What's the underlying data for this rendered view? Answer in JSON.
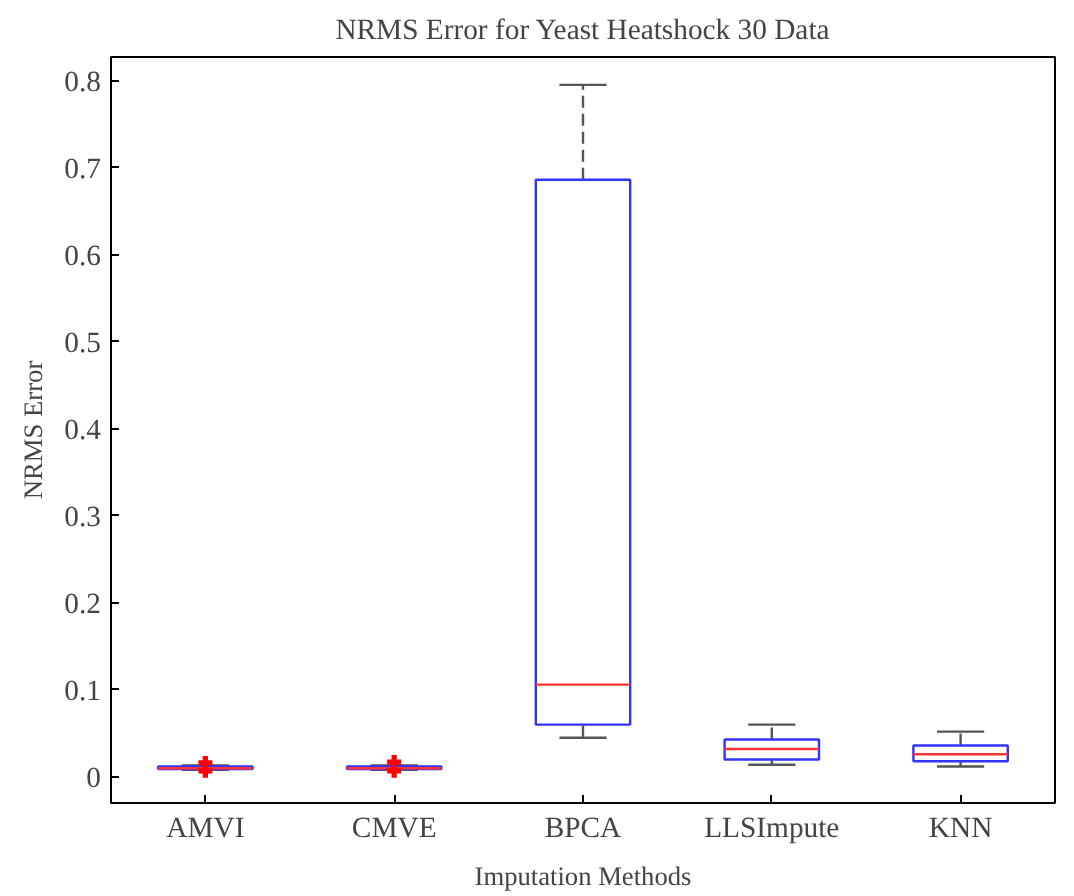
{
  "chart_data": {
    "type": "box",
    "title": "NRMS Error for Yeast Heatshock 30 Data",
    "xlabel": "Imputation Methods",
    "ylabel": "NRMS Error",
    "categories": [
      "AMVI",
      "CMVE",
      "BPCA",
      "LLSImpute",
      "KNN"
    ],
    "boxes": [
      {
        "low": 0.008,
        "q1": 0.009,
        "median": 0.01,
        "q3": 0.012,
        "high": 0.013,
        "outliers": [
          0.016,
          0.007
        ]
      },
      {
        "low": 0.008,
        "q1": 0.009,
        "median": 0.01,
        "q3": 0.012,
        "high": 0.013,
        "outliers": [
          0.017,
          0.007
        ]
      },
      {
        "low": 0.045,
        "q1": 0.06,
        "median": 0.106,
        "q3": 0.686,
        "high": 0.795
      },
      {
        "low": 0.014,
        "q1": 0.02,
        "median": 0.032,
        "q3": 0.043,
        "high": 0.06
      },
      {
        "low": 0.012,
        "q1": 0.018,
        "median": 0.026,
        "q3": 0.036,
        "high": 0.052
      }
    ],
    "color": "#3333ff",
    "ylim": [
      -0.03,
      0.827
    ],
    "yticks": [
      {
        "value": 0,
        "label": "0"
      },
      0.1,
      0.2,
      0.3,
      0.4,
      0.5,
      0.6,
      0.7,
      0.8
    ],
    "grid": false
  }
}
